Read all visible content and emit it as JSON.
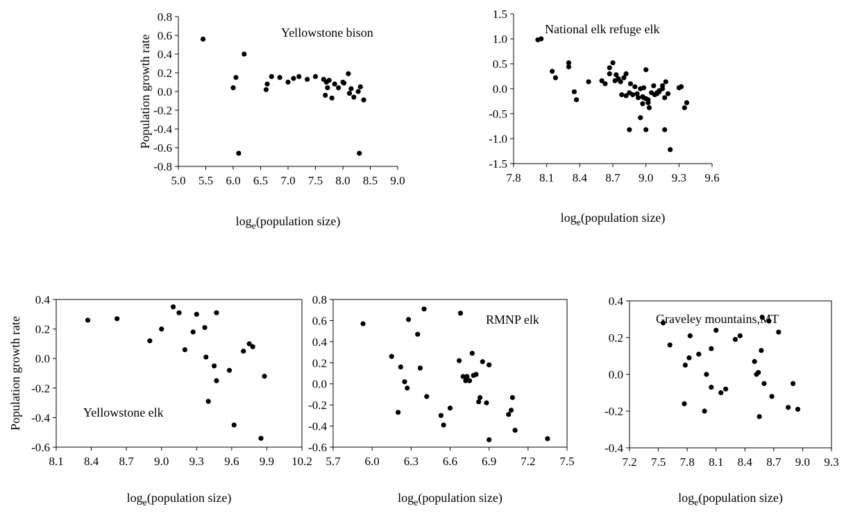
{
  "chart_data": [
    {
      "type": "scatter",
      "annotation": "Yellowstone bison",
      "ylabel": "Population growth rate",
      "xlabel_base": "log",
      "xlabel_sub": "e",
      "xlabel_rest": "(population size)",
      "xlim": [
        5.0,
        9.0
      ],
      "ylim": [
        -0.8,
        0.8
      ],
      "xticks": [
        "5.0",
        "5.5",
        "6.0",
        "6.5",
        "7.0",
        "7.5",
        "8.0",
        "8.5",
        "9.0"
      ],
      "yticks": [
        "-0.8",
        "-0.6",
        "-0.4",
        "-0.2",
        "0.0",
        "0.2",
        "0.4",
        "0.6",
        "0.8"
      ],
      "box": false,
      "x": [
        5.45,
        6.0,
        6.05,
        6.1,
        6.2,
        6.6,
        6.62,
        6.7,
        6.85,
        7.0,
        7.1,
        7.2,
        7.35,
        7.5,
        7.65,
        7.7,
        7.72,
        7.68,
        7.75,
        7.8,
        7.85,
        7.92,
        8.0,
        8.02,
        8.1,
        8.12,
        8.15,
        8.2,
        8.28,
        8.3,
        8.32,
        8.38
      ],
      "y": [
        0.56,
        0.04,
        0.15,
        -0.66,
        0.4,
        0.02,
        0.08,
        0.16,
        0.15,
        0.1,
        0.14,
        0.16,
        0.13,
        0.16,
        0.13,
        0.1,
        0.04,
        -0.04,
        0.12,
        -0.07,
        0.08,
        0.04,
        0.1,
        0.09,
        0.19,
        -0.02,
        0.03,
        -0.06,
        0.0,
        -0.66,
        0.05,
        -0.09
      ]
    },
    {
      "type": "scatter",
      "annotation": "National elk refuge elk",
      "ylabel": "",
      "xlabel_base": "log",
      "xlabel_sub": "e",
      "xlabel_rest": "(population size)",
      "xlim": [
        7.8,
        9.6
      ],
      "ylim": [
        -1.5,
        1.5
      ],
      "xticks": [
        "7.8",
        "8.1",
        "8.4",
        "8.7",
        "9.0",
        "9.3",
        "9.6"
      ],
      "yticks": [
        "-1.5",
        "-1.0",
        "-0.5",
        "0.0",
        "0.5",
        "1.0",
        "1.5"
      ],
      "box": false,
      "x": [
        8.02,
        8.05,
        8.15,
        8.18,
        8.3,
        8.3,
        8.35,
        8.37,
        8.48,
        8.6,
        8.63,
        8.67,
        8.7,
        8.73,
        8.75,
        8.77,
        8.8,
        8.82,
        8.85,
        8.88,
        8.9,
        8.93,
        8.95,
        8.97,
        9.0,
        9.02,
        9.05,
        9.07,
        9.1,
        9.12,
        9.15,
        9.17,
        9.18,
        9.2,
        9.3,
        9.32,
        9.35,
        9.37,
        8.67,
        8.72,
        8.78,
        8.82,
        8.86,
        8.92,
        8.97,
        9.0,
        9.03,
        9.08,
        9.12,
        9.15,
        8.98,
        8.95,
        9.0,
        9.02,
        9.1,
        9.17,
        8.85,
        8.98,
        9.22
      ],
      "y": [
        0.98,
        1.0,
        0.35,
        0.22,
        0.52,
        0.44,
        -0.06,
        -0.22,
        0.14,
        0.16,
        0.1,
        0.42,
        0.52,
        0.28,
        0.2,
        0.14,
        0.22,
        0.3,
        -0.08,
        -0.12,
        0.04,
        -0.18,
        0.0,
        -0.3,
        -0.2,
        -0.28,
        -0.08,
        0.06,
        -0.1,
        -0.04,
        0.0,
        -0.18,
        0.14,
        -0.1,
        0.02,
        0.04,
        -0.38,
        -0.28,
        0.3,
        0.16,
        -0.12,
        -0.14,
        0.1,
        -0.1,
        -0.16,
        0.38,
        -0.38,
        -0.12,
        -0.06,
        0.06,
        0.02,
        -0.58,
        -0.82,
        -0.22,
        -0.08,
        -0.82,
        -0.82,
        -0.18,
        -1.22
      ]
    },
    {
      "type": "scatter",
      "annotation": "Yellowstone elk",
      "ylabel": "Population growth rate",
      "xlabel_base": "log",
      "xlabel_sub": "e",
      "xlabel_rest": "(population size)",
      "xlim": [
        8.1,
        10.2
      ],
      "ylim": [
        -0.6,
        0.4
      ],
      "xticks": [
        "8.1",
        "8.4",
        "8.7",
        "9.0",
        "9.3",
        "9.6",
        "9.9",
        "10.2"
      ],
      "yticks": [
        "-0.6",
        "-0.4",
        "-0.2",
        "0.0",
        "0.2",
        "0.4"
      ],
      "box": true,
      "x": [
        8.37,
        8.62,
        8.9,
        9.0,
        9.1,
        9.15,
        9.2,
        9.27,
        9.3,
        9.37,
        9.38,
        9.4,
        9.45,
        9.47,
        9.47,
        9.58,
        9.62,
        9.7,
        9.75,
        9.78,
        9.85,
        9.88
      ],
      "y": [
        0.26,
        0.27,
        0.12,
        0.2,
        0.35,
        0.31,
        0.06,
        0.18,
        0.3,
        0.21,
        0.01,
        -0.29,
        -0.05,
        -0.15,
        0.31,
        -0.08,
        -0.45,
        0.05,
        0.1,
        0.08,
        -0.54,
        -0.12
      ]
    },
    {
      "type": "scatter",
      "annotation": "RMNP elk",
      "ylabel": "",
      "xlabel_base": "log",
      "xlabel_sub": "e",
      "xlabel_rest": "(population size)",
      "xlim": [
        5.7,
        7.5
      ],
      "ylim": [
        -0.6,
        0.8
      ],
      "xticks": [
        "5.7",
        "6.0",
        "6.3",
        "6.6",
        "6.9",
        "7.2",
        "7.5"
      ],
      "yticks": [
        "-0.6",
        "-0.4",
        "-0.2",
        "0.0",
        "0.2",
        "0.4",
        "0.6",
        "0.8"
      ],
      "box": true,
      "x": [
        5.93,
        6.15,
        6.2,
        6.22,
        6.25,
        6.27,
        6.28,
        6.35,
        6.37,
        6.4,
        6.42,
        6.53,
        6.55,
        6.6,
        6.67,
        6.68,
        6.7,
        6.72,
        6.73,
        6.75,
        6.77,
        6.78,
        6.8,
        6.82,
        6.83,
        6.85,
        6.88,
        6.9,
        6.9,
        7.05,
        7.07,
        7.08,
        7.1,
        7.35
      ],
      "y": [
        0.57,
        0.26,
        -0.27,
        0.16,
        0.02,
        -0.04,
        0.61,
        0.47,
        0.15,
        0.71,
        -0.12,
        -0.3,
        -0.39,
        -0.23,
        0.22,
        0.67,
        0.07,
        0.03,
        0.07,
        0.03,
        0.29,
        0.08,
        0.09,
        -0.17,
        -0.13,
        0.21,
        -0.18,
        0.18,
        -0.53,
        -0.29,
        -0.25,
        -0.13,
        -0.44,
        -0.52
      ]
    },
    {
      "type": "scatter",
      "annotation": "Graveley mountains,MT",
      "ylabel": "",
      "xlabel_base": "log",
      "xlabel_sub": "e",
      "xlabel_rest": "(population size)",
      "xlim": [
        7.2,
        9.3
      ],
      "ylim": [
        -0.4,
        0.4
      ],
      "xticks": [
        "7.2",
        "7.5",
        "7.8",
        "8.1",
        "8.4",
        "8.7",
        "9.0",
        "9.3"
      ],
      "yticks": [
        "-0.4",
        "-0.2",
        "0.0",
        "0.2",
        "0.4"
      ],
      "box": true,
      "x": [
        7.55,
        7.62,
        7.77,
        7.78,
        7.82,
        7.83,
        7.92,
        7.98,
        8.0,
        8.05,
        8.05,
        8.1,
        8.15,
        8.2,
        8.3,
        8.35,
        8.5,
        8.52,
        8.54,
        8.55,
        8.57,
        8.58,
        8.6,
        8.65,
        8.68,
        8.75,
        8.85,
        8.9,
        8.95
      ],
      "y": [
        0.28,
        0.16,
        -0.16,
        0.05,
        0.09,
        0.21,
        0.11,
        -0.2,
        0.0,
        -0.07,
        0.14,
        0.24,
        -0.1,
        -0.08,
        0.19,
        0.21,
        0.07,
        0.0,
        0.01,
        -0.23,
        0.13,
        0.31,
        -0.05,
        0.29,
        -0.12,
        0.23,
        -0.18,
        -0.05,
        -0.19
      ]
    }
  ]
}
